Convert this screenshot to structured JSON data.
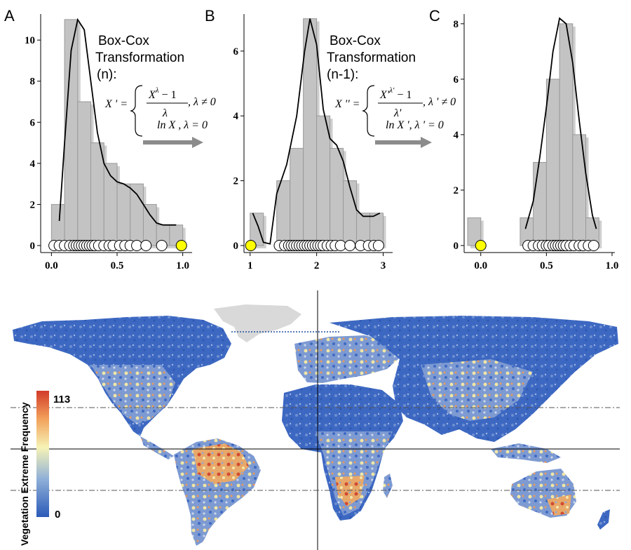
{
  "chart_data": [
    {
      "type": "bar",
      "panel": "A",
      "title": "",
      "bin_edges": [
        0.0,
        0.1,
        0.2,
        0.3,
        0.4,
        0.5,
        0.6,
        0.7,
        0.8,
        0.9,
        1.0
      ],
      "values": [
        2,
        11,
        7,
        5,
        4,
        3,
        3,
        2,
        1,
        1
      ],
      "xlim": [
        -0.05,
        1.05
      ],
      "ylim": [
        0,
        11.2
      ],
      "xticks": [
        "0.0",
        "0.5",
        "1.0"
      ],
      "yticks": [
        "0",
        "2",
        "4",
        "6",
        "8",
        "10"
      ],
      "density_curve": [
        [
          0.06,
          1.2
        ],
        [
          0.1,
          5
        ],
        [
          0.15,
          9.5
        ],
        [
          0.2,
          11
        ],
        [
          0.25,
          10.5
        ],
        [
          0.3,
          8
        ],
        [
          0.35,
          5.5
        ],
        [
          0.4,
          4
        ],
        [
          0.45,
          3.4
        ],
        [
          0.5,
          3.1
        ],
        [
          0.55,
          3
        ],
        [
          0.6,
          2.8
        ],
        [
          0.65,
          2.5
        ],
        [
          0.7,
          2
        ],
        [
          0.75,
          1.5
        ],
        [
          0.8,
          1.1
        ],
        [
          0.85,
          1
        ],
        [
          0.95,
          1
        ]
      ],
      "rug_points": [
        0.02,
        0.06,
        0.1,
        0.14,
        0.17,
        0.19,
        0.21,
        0.23,
        0.25,
        0.27,
        0.29,
        0.31,
        0.33,
        0.36,
        0.4,
        0.44,
        0.47,
        0.52,
        0.56,
        0.6,
        0.65,
        0.72,
        0.84
      ],
      "highlighted_point": 0.99
    },
    {
      "type": "bar",
      "panel": "B",
      "title": "",
      "bin_edges": [
        1.0,
        1.2,
        1.4,
        1.6,
        1.8,
        2.0,
        2.2,
        2.4,
        2.6,
        2.8,
        3.0
      ],
      "values": [
        1,
        0,
        2,
        3,
        7,
        4,
        3,
        2,
        1,
        1
      ],
      "xlim": [
        0.95,
        3.1
      ],
      "ylim": [
        0,
        7.1
      ],
      "xticks": [
        "1",
        "2",
        "3"
      ],
      "yticks": [
        "0",
        "2",
        "4",
        "6"
      ],
      "density_curve": [
        [
          1.04,
          1
        ],
        [
          1.12,
          0.6
        ],
        [
          1.2,
          0.1
        ],
        [
          1.3,
          0.05
        ],
        [
          1.4,
          1.6
        ],
        [
          1.55,
          2.5
        ],
        [
          1.7,
          4
        ],
        [
          1.82,
          6
        ],
        [
          1.9,
          7
        ],
        [
          2,
          6.2
        ],
        [
          2.1,
          4.2
        ],
        [
          2.2,
          3.3
        ],
        [
          2.3,
          3.1
        ],
        [
          2.4,
          2.6
        ],
        [
          2.5,
          1.8
        ],
        [
          2.6,
          1.1
        ],
        [
          2.7,
          0.9
        ],
        [
          2.85,
          0.9
        ],
        [
          2.95,
          1
        ]
      ],
      "rug_points": [
        1.44,
        1.52,
        1.58,
        1.62,
        1.66,
        1.7,
        1.74,
        1.78,
        1.82,
        1.86,
        1.9,
        1.94,
        1.98,
        2.02,
        2.06,
        2.1,
        2.16,
        2.22,
        2.28,
        2.36,
        2.5,
        2.66,
        2.78,
        2.86,
        2.93
      ],
      "highlighted_point": 1.01
    },
    {
      "type": "bar",
      "panel": "C",
      "title": "",
      "bin_edges": [
        -0.1,
        0.0,
        0.1,
        0.2,
        0.3,
        0.4,
        0.5,
        0.6,
        0.7,
        0.8,
        0.9
      ],
      "values": [
        1,
        0,
        0,
        0,
        1,
        3,
        6,
        8,
        4,
        1
      ],
      "xlim": [
        -0.1,
        1.0
      ],
      "ylim": [
        0,
        8.3
      ],
      "xticks": [
        "0.0",
        "0.5",
        "1.0"
      ],
      "yticks": [
        "0",
        "2",
        "4",
        "6",
        "8"
      ],
      "density_curve": [
        [
          0.34,
          0.6
        ],
        [
          0.4,
          1.6
        ],
        [
          0.45,
          3.2
        ],
        [
          0.5,
          5
        ],
        [
          0.55,
          7
        ],
        [
          0.6,
          8.2
        ],
        [
          0.65,
          8
        ],
        [
          0.7,
          6.6
        ],
        [
          0.75,
          4.5
        ],
        [
          0.8,
          2.6
        ],
        [
          0.85,
          1.1
        ],
        [
          0.88,
          0.6
        ]
      ],
      "rug_points": [
        0.36,
        0.4,
        0.44,
        0.47,
        0.5,
        0.52,
        0.55,
        0.57,
        0.59,
        0.61,
        0.63,
        0.65,
        0.68,
        0.71,
        0.75,
        0.78,
        0.82,
        0.86
      ],
      "highlighted_point": 0.0
    },
    {
      "type": "heatmap",
      "panel": "map",
      "colorbar": {
        "label": "Vegetation Extreme Frequency",
        "max": "113",
        "min": "0",
        "colors": [
          "#2b5ab8",
          "#8fb0d8",
          "#f6f3b6",
          "#f2a05a",
          "#d23b2a"
        ]
      }
    }
  ],
  "labels": {
    "a": "A",
    "b": "B",
    "c": "C"
  },
  "annotations": {
    "bc1_line1": "Box-Cox",
    "bc1_line2": "Transformation",
    "bc1_line3": "(n):",
    "bc2_line1": "Box-Cox",
    "bc2_line2": "Transformation",
    "bc2_line3": "(n-1):"
  },
  "equations": {
    "eq1_lhs": "X ' =",
    "eq1_num": "X",
    "eq1_sup": "λ",
    "eq1_minus": " − 1",
    "eq1_den": "λ",
    "eq1_cond": ", λ ≠ 0",
    "eq1_log": "ln X , λ = 0",
    "eq2_lhs": "X '' =",
    "eq2_num": "X'",
    "eq2_sup": "λ'",
    "eq2_minus": " − 1",
    "eq2_den": "λ'",
    "eq2_cond": ", λ ' ≠ 0",
    "eq2_log": "ln X ', λ ' = 0"
  },
  "colors": {
    "bar_fill": "#c3c3c3",
    "bar_stroke": "#9a9a9a",
    "shadow": "#cfcfcf",
    "highlight": "#ffff00",
    "arrow": "#8c8c8c",
    "land_greenland": "#d9d9d9"
  }
}
